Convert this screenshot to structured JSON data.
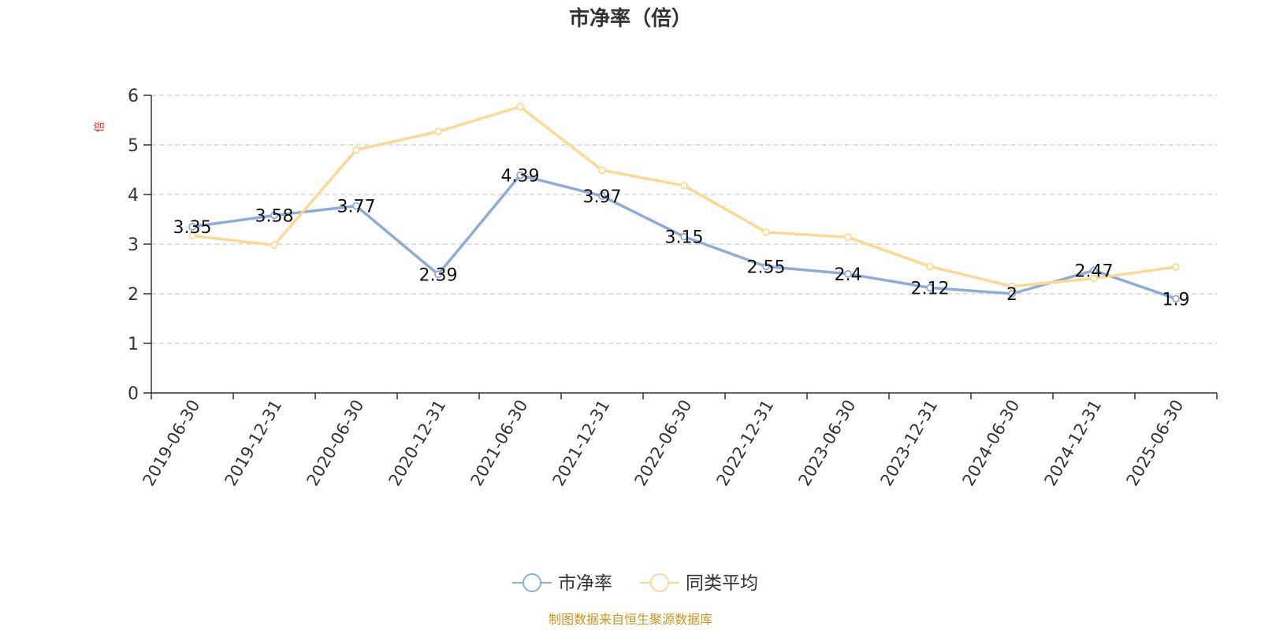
{
  "chart_data": {
    "type": "line",
    "title": "市净率（倍）",
    "ylabel": "倍",
    "xlabel": "",
    "ylim": [
      0,
      6
    ],
    "yticks": [
      0,
      1,
      2,
      3,
      4,
      5,
      6
    ],
    "grid": true,
    "legend_position": "bottom-center",
    "categories": [
      "2019-06-30",
      "2019-12-31",
      "2020-06-30",
      "2020-12-31",
      "2021-06-30",
      "2021-12-31",
      "2022-06-30",
      "2022-12-31",
      "2023-06-30",
      "2023-12-31",
      "2024-06-30",
      "2024-12-31",
      "2025-06-30"
    ],
    "series": [
      {
        "name": "市净率",
        "color": "#8eacd6",
        "values": [
          3.35,
          3.58,
          3.77,
          2.39,
          4.39,
          3.97,
          3.15,
          2.55,
          2.4,
          2.12,
          2,
          2.47,
          1.9
        ],
        "labels": [
          "3.35",
          "3.58",
          "3.77",
          "2.39",
          "4.39",
          "3.97",
          "3.15",
          "2.55",
          "2.4",
          "2.12",
          "2",
          "2.47",
          "1.9"
        ]
      },
      {
        "name": "同类平均",
        "color": "#fbd995",
        "values": [
          3.17,
          2.98,
          4.9,
          5.27,
          5.77,
          4.49,
          4.18,
          3.24,
          3.14,
          2.55,
          2.15,
          2.31,
          2.54
        ]
      }
    ]
  },
  "source_note": "制图数据来自恒生聚源数据库",
  "colors": {
    "axis": "#333333",
    "grid": "#cccccc",
    "ylabel": "#e8262a",
    "source": "#c8961e",
    "title": "#333333"
  }
}
